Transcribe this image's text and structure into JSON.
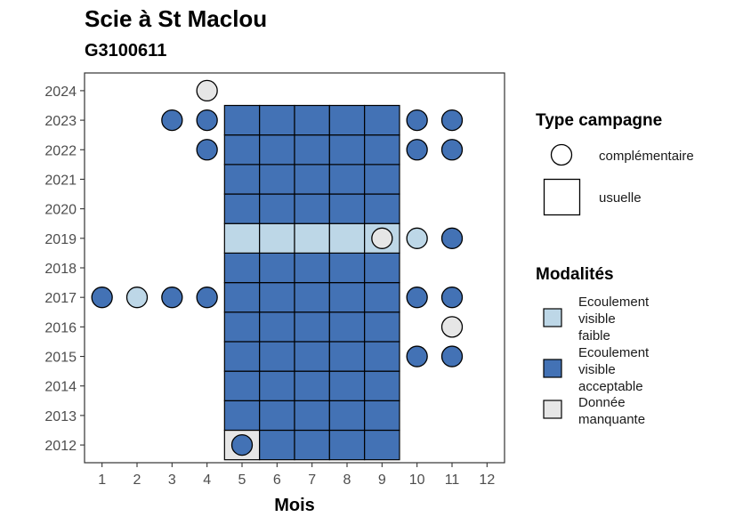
{
  "chart_data": {
    "type": "heatmap",
    "title": "Scie à St Maclou",
    "subtitle": "G3100611",
    "xlabel": "Mois",
    "ylabel": "",
    "x_ticks": [
      "1",
      "2",
      "3",
      "4",
      "5",
      "6",
      "7",
      "8",
      "9",
      "10",
      "11",
      "12"
    ],
    "y_ticks": [
      "2012",
      "2013",
      "2014",
      "2015",
      "2016",
      "2017",
      "2018",
      "2019",
      "2020",
      "2021",
      "2022",
      "2023",
      "2024"
    ],
    "xlim": [
      0.5,
      12.5
    ],
    "ylim": [
      2011.4,
      2024.6
    ],
    "grid": false,
    "legend_position": "right",
    "colors": {
      "faible": "#bdd7e7",
      "acceptable": "#4372b5",
      "manquante": "#e6e6e6"
    },
    "legend": {
      "shape_title": "Type campagne",
      "shape_items": [
        {
          "label": "complémentaire",
          "shape": "circle"
        },
        {
          "label": "usuelle",
          "shape": "square"
        }
      ],
      "fill_title": "Modalités",
      "fill_items": [
        {
          "key": "faible",
          "lines": [
            "Ecoulement",
            "visible",
            "faible"
          ]
        },
        {
          "key": "acceptable",
          "lines": [
            "Ecoulement",
            "visible",
            "acceptable"
          ]
        },
        {
          "key": "manquante",
          "lines": [
            "Donnée",
            "manquante"
          ]
        }
      ]
    },
    "usuelle": [
      {
        "year": 2012,
        "months": [
          5
        ],
        "modalite": "manquante"
      },
      {
        "year": 2012,
        "months": [
          6,
          7,
          8,
          9
        ],
        "modalite": "acceptable"
      },
      {
        "year": 2013,
        "months": [
          5,
          6,
          7,
          8,
          9
        ],
        "modalite": "acceptable"
      },
      {
        "year": 2014,
        "months": [
          5,
          6,
          7,
          8,
          9
        ],
        "modalite": "acceptable"
      },
      {
        "year": 2015,
        "months": [
          5,
          6,
          7,
          8,
          9
        ],
        "modalite": "acceptable"
      },
      {
        "year": 2016,
        "months": [
          5,
          6,
          7,
          8,
          9
        ],
        "modalite": "acceptable"
      },
      {
        "year": 2017,
        "months": [
          5,
          6,
          7,
          8,
          9
        ],
        "modalite": "acceptable"
      },
      {
        "year": 2018,
        "months": [
          5,
          6,
          7,
          8,
          9
        ],
        "modalite": "acceptable"
      },
      {
        "year": 2019,
        "months": [
          5,
          6,
          7,
          8,
          9
        ],
        "modalite": "faible"
      },
      {
        "year": 2020,
        "months": [
          5,
          6,
          7,
          8,
          9
        ],
        "modalite": "acceptable"
      },
      {
        "year": 2021,
        "months": [
          5,
          6,
          7,
          8,
          9
        ],
        "modalite": "acceptable"
      },
      {
        "year": 2022,
        "months": [
          5,
          6,
          7,
          8,
          9
        ],
        "modalite": "acceptable"
      },
      {
        "year": 2023,
        "months": [
          5,
          6,
          7,
          8,
          9
        ],
        "modalite": "acceptable"
      }
    ],
    "complementaire": [
      {
        "year": 2024,
        "month": 4,
        "modalite": "manquante"
      },
      {
        "year": 2023,
        "month": 3,
        "modalite": "acceptable"
      },
      {
        "year": 2023,
        "month": 4,
        "modalite": "acceptable"
      },
      {
        "year": 2023,
        "month": 10,
        "modalite": "acceptable"
      },
      {
        "year": 2023,
        "month": 11,
        "modalite": "acceptable"
      },
      {
        "year": 2022,
        "month": 4,
        "modalite": "acceptable"
      },
      {
        "year": 2022,
        "month": 10,
        "modalite": "acceptable"
      },
      {
        "year": 2022,
        "month": 11,
        "modalite": "acceptable"
      },
      {
        "year": 2019,
        "month": 9,
        "modalite": "manquante"
      },
      {
        "year": 2019,
        "month": 10,
        "modalite": "faible"
      },
      {
        "year": 2019,
        "month": 11,
        "modalite": "acceptable"
      },
      {
        "year": 2017,
        "month": 1,
        "modalite": "acceptable"
      },
      {
        "year": 2017,
        "month": 2,
        "modalite": "faible"
      },
      {
        "year": 2017,
        "month": 3,
        "modalite": "acceptable"
      },
      {
        "year": 2017,
        "month": 4,
        "modalite": "acceptable"
      },
      {
        "year": 2017,
        "month": 10,
        "modalite": "acceptable"
      },
      {
        "year": 2017,
        "month": 11,
        "modalite": "acceptable"
      },
      {
        "year": 2016,
        "month": 11,
        "modalite": "manquante"
      },
      {
        "year": 2015,
        "month": 10,
        "modalite": "acceptable"
      },
      {
        "year": 2015,
        "month": 11,
        "modalite": "acceptable"
      },
      {
        "year": 2012,
        "month": 5,
        "modalite": "acceptable"
      }
    ]
  }
}
